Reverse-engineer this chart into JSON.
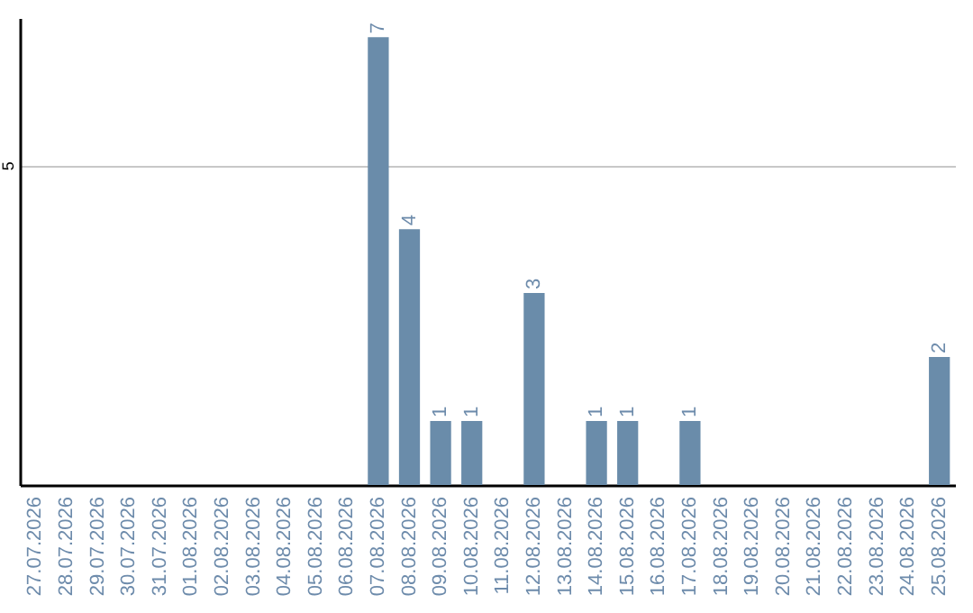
{
  "chart_data": {
    "type": "bar",
    "categories": [
      "27.07.2026",
      "28.07.2026",
      "29.07.2026",
      "30.07.2026",
      "31.07.2026",
      "01.08.2026",
      "02.08.2026",
      "03.08.2026",
      "04.08.2026",
      "05.08.2026",
      "06.08.2026",
      "07.08.2026",
      "08.08.2026",
      "09.08.2026",
      "10.08.2026",
      "11.08.2026",
      "12.08.2026",
      "13.08.2026",
      "14.08.2026",
      "15.08.2026",
      "16.08.2026",
      "17.08.2026",
      "18.08.2026",
      "19.08.2026",
      "20.08.2026",
      "21.08.2026",
      "22.08.2026",
      "23.08.2026",
      "24.08.2026",
      "25.08.2026"
    ],
    "values": [
      null,
      null,
      null,
      null,
      null,
      null,
      null,
      null,
      null,
      null,
      null,
      7,
      4,
      1,
      1,
      null,
      3,
      null,
      1,
      1,
      null,
      1,
      null,
      null,
      null,
      null,
      null,
      null,
      null,
      2
    ],
    "color": "#6a8caa",
    "ylim": [
      0,
      7.3
    ],
    "yticks": [
      {
        "value": 0,
        "label": null
      },
      5
    ],
    "grid": "y",
    "data_labels": true
  }
}
